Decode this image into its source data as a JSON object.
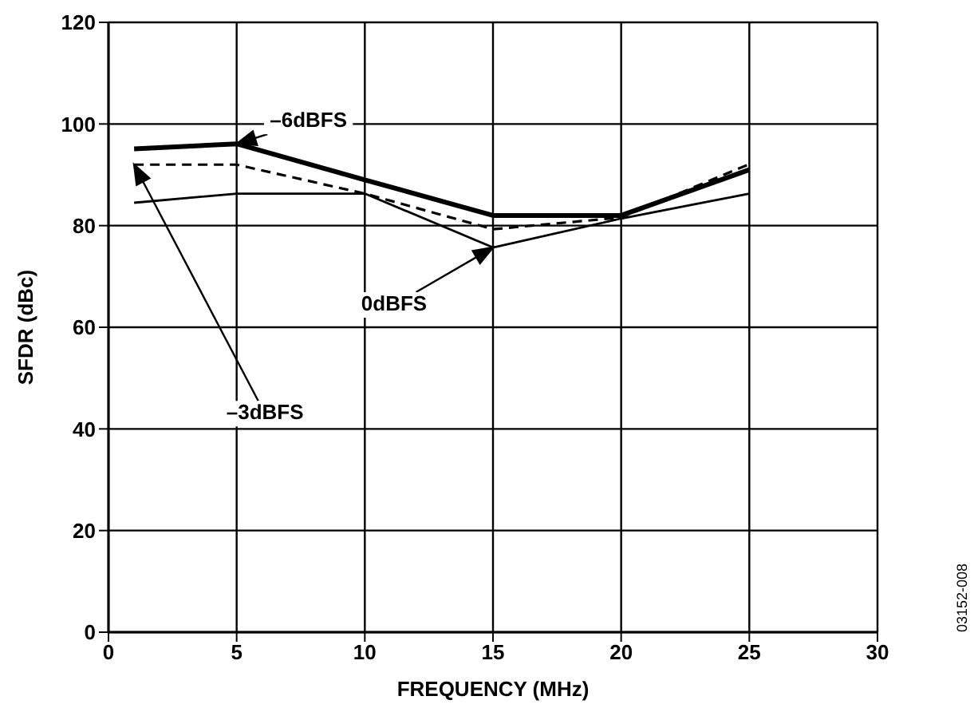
{
  "chart_data": {
    "type": "line",
    "xlabel": "FREQUENCY (MHz)",
    "ylabel": "SFDR (dBc)",
    "x": [
      1,
      5,
      10,
      15,
      20,
      25
    ],
    "series": [
      {
        "color": "#000000",
        "line_style": "solid",
        "values": [
          95.1,
          96.1,
          89,
          82,
          82,
          91
        ]
      },
      {
        "color": "#000000",
        "line_style": "dashed",
        "values": [
          92,
          92,
          86.3,
          79.3,
          81.6,
          92.1
        ]
      },
      {
        "color": "#000000",
        "line_style": "solid",
        "values": [
          84.5,
          86.3,
          86.3,
          75.7,
          81.4,
          86.3
        ]
      }
    ],
    "xlim": [
      0,
      30
    ],
    "xticks": [
      0,
      5,
      10,
      15,
      20,
      25,
      30
    ],
    "ylim": [
      0,
      120
    ],
    "yticks": [
      0,
      20,
      40,
      60,
      80,
      100,
      120
    ],
    "grid": true,
    "legend": false,
    "marker": "none",
    "annotations": [
      {
        "text": "–6dBFS",
        "x": 5,
        "y": 96.1
      },
      "–3dBFS",
      "0dBFS",
      "03152-008"
    ]
  }
}
